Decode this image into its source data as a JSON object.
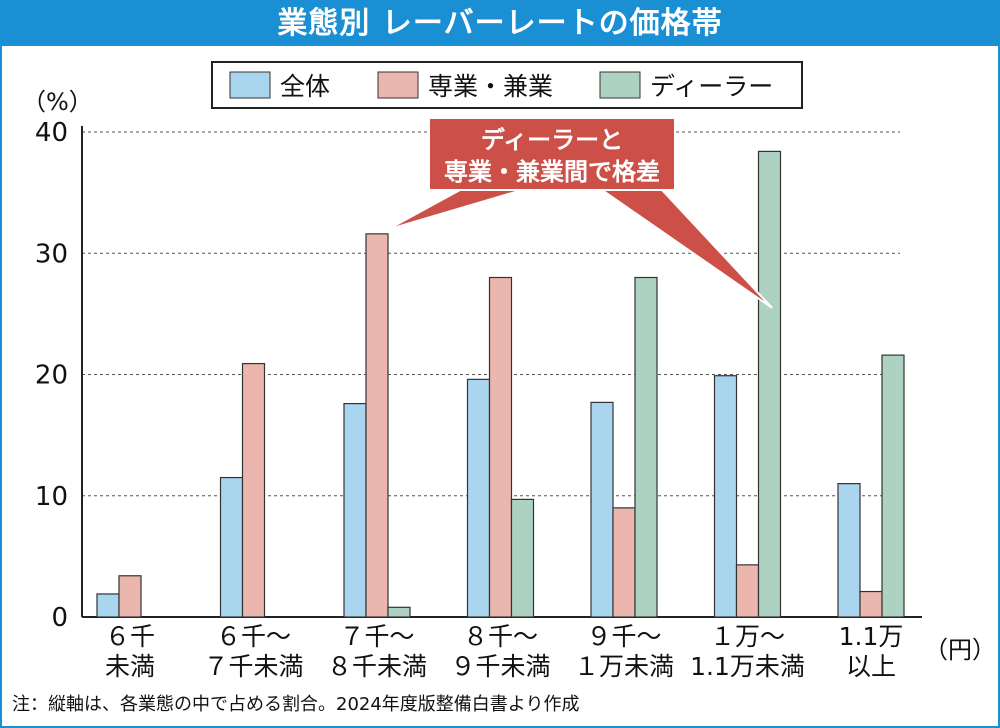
{
  "title": "業態別 レーバーレートの価格帯",
  "note": "注：縦軸は、各業態の中で占める割合。2024年度版整備白書より作成",
  "colors": {
    "all": "#a9d5ef",
    "specialist": "#eab6ae",
    "dealer": "#add2c2",
    "callout": "#cc5048",
    "title_bg": "#1b8fd3"
  },
  "callout": {
    "line1": "ディーラーと",
    "line2": "専業・兼業間で格差"
  },
  "chart_data": {
    "type": "bar",
    "title": "業態別 レーバーレートの価格帯",
    "ylabel": "（%）",
    "xlabel": "（円）",
    "ylim": [
      0,
      40
    ],
    "yticks": [
      0,
      10,
      20,
      30,
      40
    ],
    "grid": true,
    "legend_position": "top",
    "categories": [
      [
        "６千",
        "未満"
      ],
      [
        "６千～",
        "７千未満"
      ],
      [
        "７千～",
        "８千未満"
      ],
      [
        "８千～",
        "９千未満"
      ],
      [
        "９千～",
        "１万未満"
      ],
      [
        "１万～",
        "1.1万未満"
      ],
      [
        "1.1万",
        "以上"
      ]
    ],
    "series": [
      {
        "name": "全体",
        "key": "all",
        "values": [
          1.9,
          11.5,
          17.6,
          19.6,
          17.7,
          19.9,
          11.0
        ]
      },
      {
        "name": "専業・兼業",
        "key": "specialist",
        "values": [
          3.4,
          20.9,
          31.6,
          28.0,
          9.0,
          4.3,
          2.1
        ]
      },
      {
        "name": "ディーラー",
        "key": "dealer",
        "values": [
          0,
          0,
          0.8,
          9.7,
          28.0,
          38.4,
          21.6
        ]
      }
    ]
  }
}
